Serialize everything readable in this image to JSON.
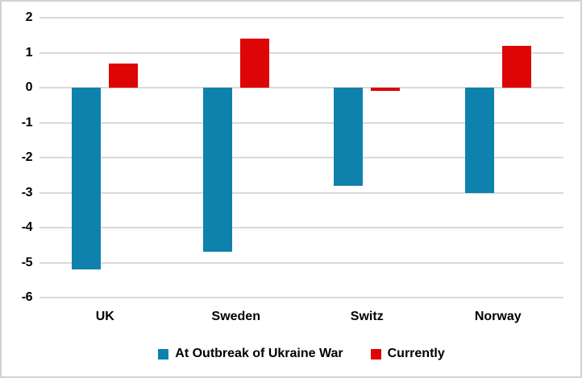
{
  "chart_data": {
    "type": "bar",
    "title": "",
    "xlabel": "",
    "ylabel": "",
    "categories": [
      "UK",
      "Sweden",
      "Switz",
      "Norway"
    ],
    "series": [
      {
        "name": "At Outbreak of Ukraine War",
        "color": "#0e81ad",
        "values": [
          -5.2,
          -4.7,
          -2.8,
          -3.0
        ]
      },
      {
        "name": "Currently",
        "color": "#dd0505",
        "values": [
          0.7,
          1.4,
          -0.1,
          1.2
        ]
      }
    ],
    "ylim": [
      -6,
      2
    ],
    "ytick_step": 1,
    "yticks": [
      "2",
      "1",
      "0",
      "-1",
      "-2",
      "-3",
      "-4",
      "-5",
      "-6"
    ],
    "ytick_values": [
      2,
      1,
      0,
      -1,
      -2,
      -3,
      -4,
      -5,
      -6
    ],
    "grid": true,
    "legend_position": "bottom"
  },
  "colors": {
    "gridline": "#d9d9d9",
    "frame_border": "#d2d2d2",
    "background": "#ffffff",
    "text": "#000000"
  }
}
